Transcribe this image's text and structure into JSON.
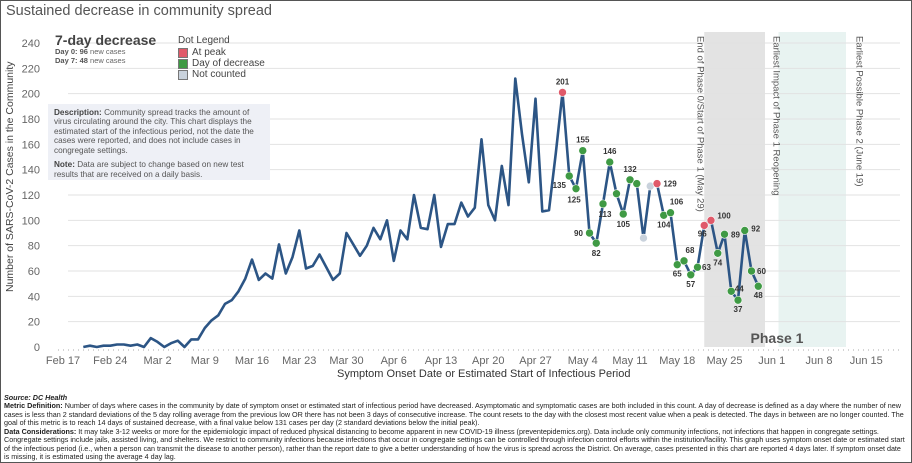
{
  "title": "Sustained decrease in community spread",
  "kpi": {
    "heading": "7-day decrease",
    "day0_label": "Day 0:",
    "day0_value": "96",
    "day0_suffix": "new cases",
    "day7_label": "Day 7:",
    "day7_value": "48",
    "day7_suffix": "new cases"
  },
  "legend": {
    "title": "Dot Legend",
    "items": [
      {
        "label": "At peak",
        "color": "#e05a6a"
      },
      {
        "label": "Day of decrease",
        "color": "#3f9a44"
      },
      {
        "label": "Not counted",
        "color": "#c9d2dc"
      }
    ]
  },
  "description": {
    "desc_label": "Description:",
    "desc_text": "Community spread tracks the amount of virus circulating around the city. This chart displays the estimated start of the infectious period, not the date the cases were reported, and does not include cases in congregate settings.",
    "note_label": "Note:",
    "note_text": "Data are subject to change based on new test results that are received on a daily basis."
  },
  "footer": {
    "source": "Source: DC Health",
    "metric_label": "Metric Definition:",
    "metric_text": "Number of days where cases in the community by date of symptom onset or estimated start of infectious period have decreased. Asymptomatic and symptomatic cases are both included in this count. A day of decrease is defined as a day where the number of new cases is less than 2 standard deviations of the 5 day rolling average from the previous low OR there has not been 3 days of consecutive increase. The count resets to the day with the closest most recent value when a peak is detected. The days in between are no longer counted. The goal of this metric is to reach 14 days of sustained decrease, with a final value below 131 cases per day (2 standard deviations below the initial peak).",
    "data_label": "Data Considerations:",
    "data_text": "It may take 3-12 weeks or more for the epidemiologic impact of reduced physical distancing to become apparent in new COVID-19 illness (preventepidemics.org). Data include only community infections, not infections that happen in congregate settings. Congregate settings include jails, assisted living, and shelters. We restrict to community infections because infections that occur in congregate settings can be controlled through infection control efforts within the institution/facility. This graph uses symptom onset date or estimated start of the infectious period (i.e., when a person can transmit the disease to another person), rather than the report date to give a better understanding of how the virus is spread across the District. On average, cases presented in this chart are reported 4 days later. If symptom onset date is missing, it is estimated using the average 4 day lag."
  },
  "chart_data": {
    "type": "line",
    "title": "Sustained decrease in community spread",
    "xlabel": "Symptom Onset Date or Estimated Start of Infectious Period",
    "ylabel": "Number of SARS-CoV-2 Cases in the Community",
    "ylim": [
      0,
      240
    ],
    "yticks": [
      0,
      20,
      40,
      60,
      80,
      100,
      120,
      140,
      160,
      180,
      200,
      220,
      240
    ],
    "xrange_days": [
      -1,
      120
    ],
    "x_origin": "Feb 17",
    "xticks": [
      {
        "day": 0,
        "label": "Feb 17"
      },
      {
        "day": 7,
        "label": "Feb 24"
      },
      {
        "day": 14,
        "label": "Mar 2"
      },
      {
        "day": 21,
        "label": "Mar 9"
      },
      {
        "day": 28,
        "label": "Mar 16"
      },
      {
        "day": 35,
        "label": "Mar 23"
      },
      {
        "day": 42,
        "label": "Mar 30"
      },
      {
        "day": 49,
        "label": "Apr 6"
      },
      {
        "day": 56,
        "label": "Apr 13"
      },
      {
        "day": 63,
        "label": "Apr 20"
      },
      {
        "day": 70,
        "label": "Apr 27"
      },
      {
        "day": 77,
        "label": "May 4"
      },
      {
        "day": 84,
        "label": "May 11"
      },
      {
        "day": 91,
        "label": "May 18"
      },
      {
        "day": 98,
        "label": "May 25"
      },
      {
        "day": 105,
        "label": "Jun 1"
      },
      {
        "day": 112,
        "label": "Jun 8"
      },
      {
        "day": 119,
        "label": "Jun 15"
      }
    ],
    "grid": true,
    "series": [
      {
        "name": "Community cases",
        "color": "#2c5585",
        "start_day": 3,
        "values": [
          0,
          1,
          0,
          1,
          1,
          2,
          2,
          1,
          2,
          -4,
          7,
          4,
          -1,
          3,
          5,
          -1,
          6,
          6,
          15,
          21,
          25,
          34,
          37,
          44,
          54,
          69,
          53,
          58,
          54,
          81,
          58,
          71,
          92,
          62,
          64,
          73,
          63,
          53,
          58,
          90,
          81,
          72,
          80,
          94,
          85,
          100,
          68,
          92,
          85,
          120,
          94,
          93,
          120,
          79,
          97,
          97,
          114,
          103,
          110,
          164,
          112,
          100,
          143,
          112,
          212,
          168,
          130,
          196,
          107,
          108,
          153,
          201,
          135,
          125,
          155,
          90,
          82,
          113,
          146,
          121,
          105,
          132,
          129,
          86,
          127,
          129,
          104,
          106,
          65,
          68,
          57,
          63,
          96,
          100,
          74,
          89,
          44,
          37,
          92,
          60,
          48
        ],
        "dots": [
          {
            "day": 74,
            "value": 201,
            "status": "peak",
            "label": "201"
          },
          {
            "day": 75,
            "value": 135,
            "status": "decrease",
            "label": "135"
          },
          {
            "day": 76,
            "value": 125,
            "status": "decrease",
            "label": "125"
          },
          {
            "day": 77,
            "value": 155,
            "status": "decrease",
            "label": "155"
          },
          {
            "day": 78,
            "value": 90,
            "status": "decrease",
            "label": "90"
          },
          {
            "day": 79,
            "value": 82,
            "status": "decrease",
            "label": "82"
          },
          {
            "day": 80,
            "value": 113,
            "status": "decrease",
            "label": "113"
          },
          {
            "day": 81,
            "value": 146,
            "status": "decrease",
            "label": "146"
          },
          {
            "day": 82,
            "value": 121,
            "status": "decrease",
            "label": ""
          },
          {
            "day": 83,
            "value": 105,
            "status": "decrease",
            "label": "105"
          },
          {
            "day": 84,
            "value": 132,
            "status": "decrease",
            "label": "132"
          },
          {
            "day": 85,
            "value": 129,
            "status": "decrease",
            "label": ""
          },
          {
            "day": 86,
            "value": 86,
            "status": "not_counted",
            "label": ""
          },
          {
            "day": 87,
            "value": 127,
            "status": "not_counted",
            "label": ""
          },
          {
            "day": 88,
            "value": 129,
            "status": "peak",
            "label": "129"
          },
          {
            "day": 89,
            "value": 104,
            "status": "decrease",
            "label": "104"
          },
          {
            "day": 90,
            "value": 106,
            "status": "decrease",
            "label": "106"
          },
          {
            "day": 91,
            "value": 65,
            "status": "decrease",
            "label": "65"
          },
          {
            "day": 92,
            "value": 68,
            "status": "decrease",
            "label": "68"
          },
          {
            "day": 93,
            "value": 57,
            "status": "decrease",
            "label": "57"
          },
          {
            "day": 94,
            "value": 63,
            "status": "decrease",
            "label": "63"
          },
          {
            "day": 95,
            "value": 96,
            "status": "peak",
            "label": "96"
          },
          {
            "day": 96,
            "value": 100,
            "status": "peak",
            "label": "100"
          },
          {
            "day": 97,
            "value": 74,
            "status": "decrease",
            "label": "74"
          },
          {
            "day": 98,
            "value": 89,
            "status": "decrease",
            "label": "89"
          },
          {
            "day": 99,
            "value": 44,
            "status": "decrease",
            "label": "44"
          },
          {
            "day": 100,
            "value": 37,
            "status": "decrease",
            "label": "37"
          },
          {
            "day": 101,
            "value": 92,
            "status": "decrease",
            "label": "92"
          },
          {
            "day": 102,
            "value": 60,
            "status": "decrease",
            "label": "60"
          },
          {
            "day": 103,
            "value": 48,
            "status": "decrease",
            "label": "48"
          }
        ]
      }
    ],
    "annotations": [
      {
        "type": "band",
        "from_day": 95,
        "to_day": 104,
        "color": "#e3e3e3",
        "label": "End of Phase 0/Start of Phase 1 (May 29)"
      },
      {
        "type": "band",
        "from_day": 106,
        "to_day": 116,
        "color": "#e8f3f1",
        "label": "Earliest Impact of Phase 1 Reopening"
      },
      {
        "type": "line",
        "day": 118,
        "label": "Earliest Possible Phase 2 (June 19)"
      },
      {
        "type": "text",
        "label": "Phase 1"
      }
    ]
  }
}
